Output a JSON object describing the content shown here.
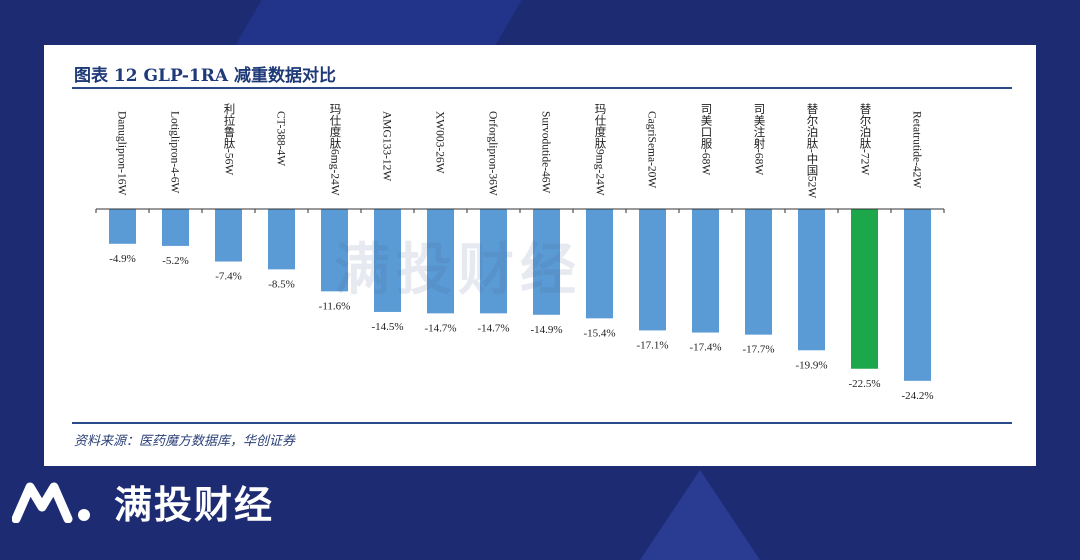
{
  "figure": {
    "title": "图表 12   GLP-1RA 减重数据对比",
    "source": "资料来源：医药魔方数据库，华创证券"
  },
  "watermark": {
    "text": "满投财经"
  },
  "brand": {
    "text": "满投财经"
  },
  "colors": {
    "bar": "#5b9bd5",
    "highlight": "#1ca84a",
    "page_bg": "#1d2b73"
  },
  "chart_data": {
    "type": "bar",
    "title": "GLP-1RA 减重数据对比",
    "xlabel": "",
    "ylabel": "",
    "ylim": [
      -25,
      0
    ],
    "highlight_index": 14,
    "categories": [
      "Danuglipron-16W",
      "Lotiglipron-4-6W",
      "利拉鲁肽-56W",
      "CT-388-4W",
      "玛仕度肽6mg-24W",
      "AMG133-12W",
      "XW003-26W",
      "Orforglipron-36W",
      "Survodutide-46W",
      "玛仕度肽9mg-24W",
      "CagriSema-20W",
      "司美口服-68W",
      "司美注射-68W",
      "替尔泊肽-中国52W",
      "替尔泊肽-72W",
      "Retatrutide-42W"
    ],
    "values": [
      -4.9,
      -5.2,
      -7.4,
      -8.5,
      -11.6,
      -14.5,
      -14.7,
      -14.7,
      -14.9,
      -15.4,
      -17.1,
      -17.4,
      -17.7,
      -19.9,
      -22.5,
      -24.2
    ],
    "value_labels": [
      "-4.9%",
      "-5.2%",
      "-7.4%",
      "-8.5%",
      "-11.6%",
      "-14.5%",
      "-14.7%",
      "-14.7%",
      "-14.9%",
      "-15.4%",
      "-17.1%",
      "-17.4%",
      "-17.7%",
      "-19.9%",
      "-22.5%",
      "-24.2%"
    ]
  }
}
